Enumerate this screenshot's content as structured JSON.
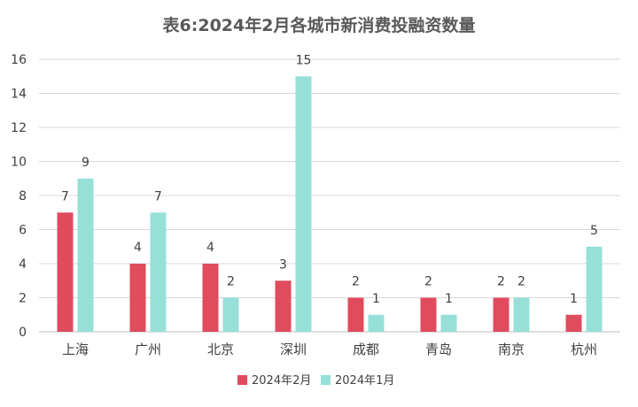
{
  "chart_data": {
    "type": "bar",
    "title": "表6:2024年2月各城市新消费投融资数量",
    "categories": [
      "上海",
      "广州",
      "北京",
      "深圳",
      "成都",
      "青岛",
      "南京",
      "杭州"
    ],
    "series": [
      {
        "name": "2024年2月",
        "values": [
          7,
          4,
          4,
          3,
          2,
          2,
          2,
          1
        ],
        "color": "#e04b5e"
      },
      {
        "name": "2024年1月",
        "values": [
          9,
          7,
          2,
          15,
          1,
          1,
          2,
          5
        ],
        "color": "#96e0d8"
      }
    ],
    "ylim": [
      0,
      16
    ],
    "yticks": [
      0,
      2,
      4,
      6,
      8,
      10,
      12,
      14,
      16
    ],
    "grid": true,
    "legend_position": "bottom"
  }
}
